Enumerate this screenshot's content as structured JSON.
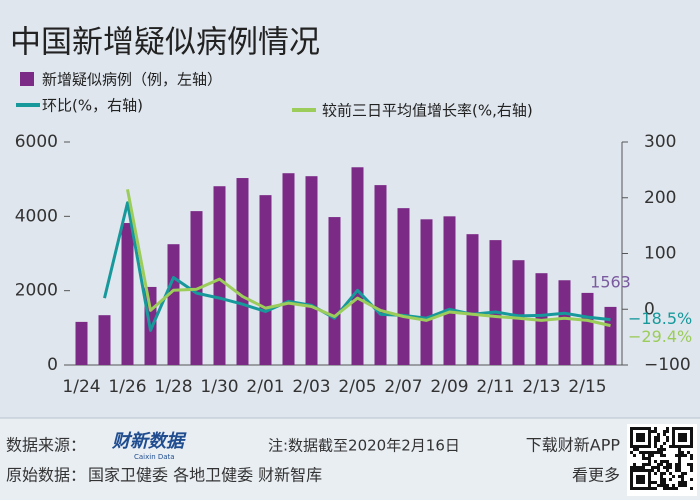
{
  "chart_data": {
    "type": "bar_line",
    "title": "中国新增疑似病例情况",
    "categories": [
      "1/24",
      null,
      "1/26",
      null,
      "1/28",
      null,
      "1/30",
      null,
      "2/01",
      null,
      "2/03",
      null,
      "2/05",
      null,
      "2/07",
      null,
      "2/09",
      null,
      "2/11",
      null,
      "2/13",
      null,
      "2/15",
      null
    ],
    "series": [
      {
        "name": "新增疑似病例（例，左轴）",
        "type": "bar",
        "color": "#7b2a86",
        "values": [
          1160,
          1340,
          3820,
          2100,
          3250,
          4140,
          4810,
          5030,
          4570,
          5160,
          5080,
          3980,
          5320,
          4840,
          4220,
          3920,
          4000,
          3520,
          3360,
          2820,
          2470,
          2280,
          1940,
          1563
        ],
        "value_labels": [
          null,
          null,
          null,
          null,
          null,
          null,
          null,
          null,
          null,
          null,
          null,
          null,
          null,
          null,
          null,
          null,
          null,
          null,
          null,
          null,
          null,
          null,
          null,
          "1563"
        ]
      },
      {
        "name": "环比(%，右轴)",
        "type": "line",
        "axis": "y2",
        "color": "#17999b",
        "values": [
          null,
          20,
          191,
          -38,
          57,
          29,
          20,
          9,
          -4,
          14,
          7,
          -16,
          34,
          -9,
          -11,
          -16,
          0,
          -9,
          -5,
          -12,
          -11,
          -7,
          -14,
          -18.5
        ],
        "value_labels": [
          null,
          null,
          null,
          null,
          null,
          null,
          null,
          null,
          null,
          null,
          null,
          null,
          null,
          null,
          null,
          null,
          null,
          null,
          null,
          null,
          null,
          null,
          null,
          "−18.5%"
        ]
      },
      {
        "name": "较前三日平均值增长率(%,右轴)",
        "type": "line",
        "axis": "y2",
        "color": "#9ccc5a",
        "values": [
          null,
          null,
          215,
          -2,
          34,
          36,
          54,
          23,
          2,
          11,
          5,
          -13,
          20,
          -2,
          -13,
          -20,
          -5,
          -9,
          -13,
          -16,
          -20,
          -16,
          -20,
          -29.4
        ],
        "value_labels": [
          null,
          null,
          null,
          null,
          null,
          null,
          null,
          null,
          null,
          null,
          null,
          null,
          null,
          null,
          null,
          null,
          null,
          null,
          null,
          null,
          null,
          null,
          null,
          "−29.4%"
        ]
      }
    ],
    "ylim": [
      0,
      6000
    ],
    "yticks": [
      0,
      2000,
      4000,
      6000
    ],
    "y2lim": [
      -100,
      300
    ],
    "y2ticks": [
      {
        "value": -100,
        "label": "−100"
      },
      0,
      100,
      200,
      300
    ],
    "grid": false
  },
  "footer": {
    "source_label": "数据来源：",
    "logo": "财新数据",
    "logo_sub": "Caixin Data",
    "note": "注:数据截至2020年2月16日",
    "download": "下载财新APP",
    "original_label": "原始数据：",
    "original_sources": "国家卫健委 各地卫健委 财新智库",
    "more": "看更多"
  }
}
